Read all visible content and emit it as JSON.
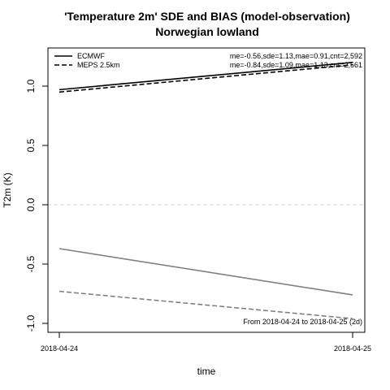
{
  "chart_data": {
    "type": "line",
    "title": "'Temperature 2m' SDE and BIAS (model-observation)",
    "subtitle": "Norwegian lowland",
    "xlabel": "time",
    "ylabel": "T2m (K)",
    "x": [
      "2018-04-24",
      "2018-04-25"
    ],
    "ylim": [
      -1.0,
      1.0
    ],
    "yticks": [
      "1.0",
      "0.5",
      "0.0",
      "-0.5",
      "-1.0"
    ],
    "yticks_values": [
      1.0,
      0.5,
      0.0,
      -0.5,
      -1.0
    ],
    "series": [
      {
        "name": "ECMWF",
        "metric": "SDE",
        "values": [
          0.97,
          1.2
        ],
        "color": "#000000",
        "dash": "solid"
      },
      {
        "name": "MEPS 2.5km",
        "metric": "SDE",
        "values": [
          0.95,
          1.18
        ],
        "color": "#000000",
        "dash": "dashed"
      },
      {
        "name": "ECMWF",
        "metric": "BIAS",
        "values": [
          -0.37,
          -0.76
        ],
        "color": "#808080",
        "dash": "solid"
      },
      {
        "name": "MEPS 2.5km",
        "metric": "BIAS",
        "values": [
          -0.73,
          -0.96
        ],
        "color": "#808080",
        "dash": "dashed"
      }
    ],
    "zero_line_color": "#d3d3d3",
    "legend": {
      "position": "top-left",
      "entries": [
        {
          "label": "ECMWF",
          "dash": "solid"
        },
        {
          "label": "MEPS 2.5km",
          "dash": "dashed"
        }
      ]
    },
    "stats": [
      "me=-0.56,sde=1.13,mae=0.91,cnt=2,592",
      "me=-0.84,sde=1.09,mae=1.13,cnt=2,561"
    ],
    "period_note": "From 2018-04-24 to 2018-04-25 (2d)",
    "grid": false
  }
}
